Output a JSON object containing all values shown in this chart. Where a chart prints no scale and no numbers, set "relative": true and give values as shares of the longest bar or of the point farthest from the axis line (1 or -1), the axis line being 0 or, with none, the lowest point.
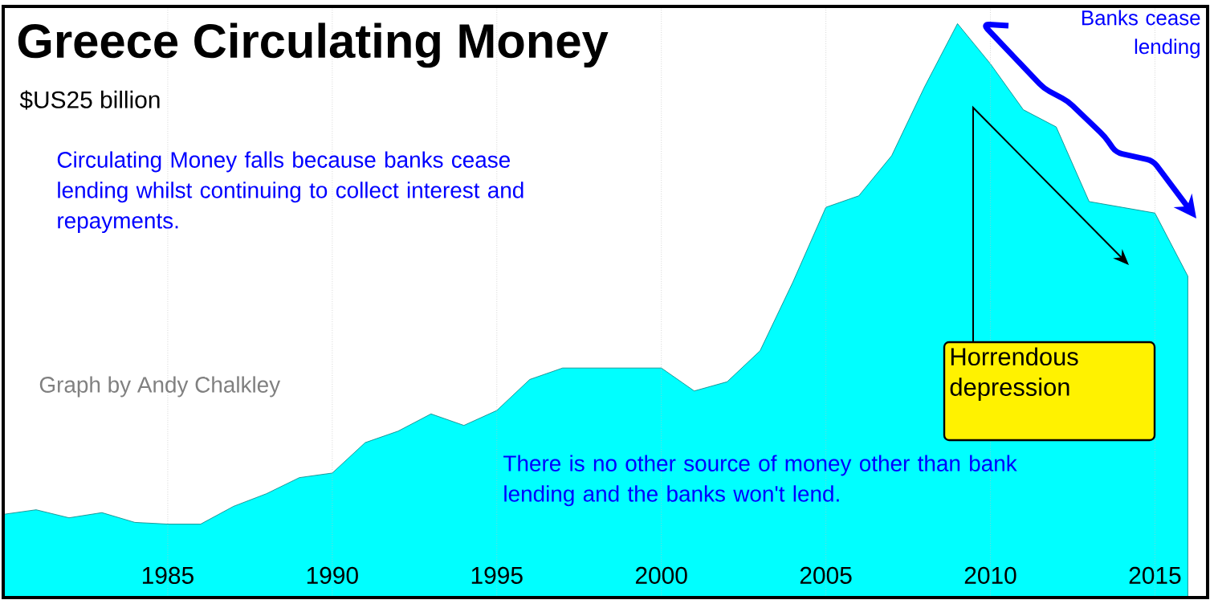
{
  "chart_data": {
    "type": "area",
    "title": "Greece Circulating Money",
    "subtitle": "$US25 billion",
    "x": [
      1980,
      1981,
      1982,
      1983,
      1984,
      1985,
      1986,
      1987,
      1988,
      1989,
      1990,
      1991,
      1992,
      1993,
      1994,
      1995,
      1996,
      1997,
      1998,
      1999,
      2000,
      2001,
      2002,
      2003,
      2004,
      2005,
      2006,
      2007,
      2008,
      2009,
      2010,
      2011,
      2012,
      2013,
      2014,
      2015,
      2016
    ],
    "values": [
      0.145,
      0.153,
      0.139,
      0.148,
      0.131,
      0.128,
      0.128,
      0.159,
      0.181,
      0.209,
      0.217,
      0.27,
      0.29,
      0.32,
      0.3,
      0.326,
      0.38,
      0.4,
      0.4,
      0.4,
      0.4,
      0.36,
      0.376,
      0.43,
      0.55,
      0.68,
      0.7,
      0.77,
      0.89,
      1,
      0.93,
      0.85,
      0.82,
      0.69,
      0.68,
      0.67,
      0.56
    ],
    "color": "#00ffff",
    "relative": true,
    "xlim": [
      1980,
      2016.6
    ],
    "xticks": [
      1985,
      1990,
      1995,
      2000,
      2005,
      2010,
      2015
    ],
    "grid": "x",
    "annotations": [
      "Circulating Money falls because banks cease lending whilst continuing to collect interest and repayments.",
      "Graph by Andy Chalkley",
      "There is no other source of money other than bank lending and the banks won't lend.",
      "Banks cease lending",
      "Horrendous depression"
    ]
  }
}
